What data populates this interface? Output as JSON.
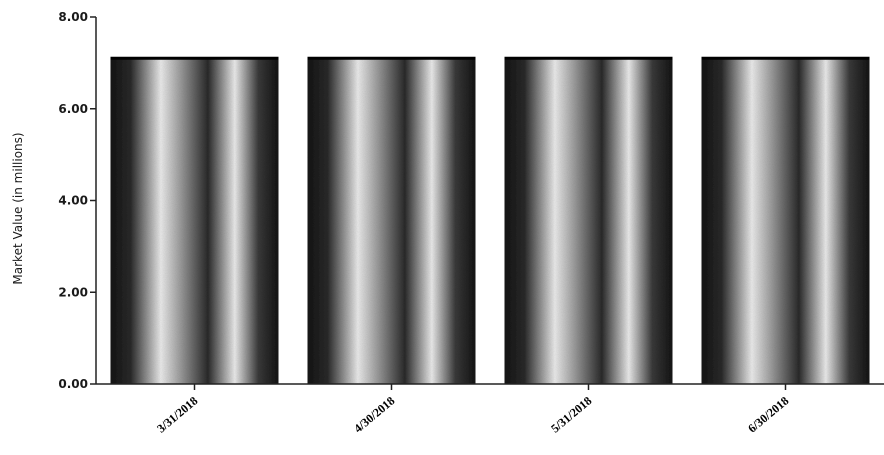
{
  "chart_data": {
    "type": "bar",
    "title": "",
    "xlabel": "",
    "ylabel": "Market Value (in millions)",
    "ylim": [
      0,
      8
    ],
    "yticks": [
      "0.00",
      "2.00",
      "4.00",
      "6.00",
      "8.00"
    ],
    "categories": [
      "3/31/2018",
      "4/30/2018",
      "5/31/2018",
      "6/30/2018"
    ],
    "values": [
      7.1,
      7.1,
      7.1,
      7.1
    ],
    "grid": false,
    "colors": {
      "bar_dark": "#141414",
      "bar_light": "#f4f4f4",
      "axis": "#222222",
      "bar_top_line": "#000000"
    }
  }
}
